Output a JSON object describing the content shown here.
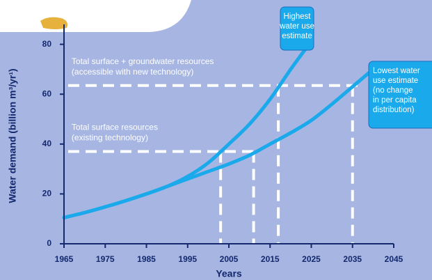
{
  "chart_data": {
    "type": "line",
    "ylabel": "Water demand (billion m³/yr¹)",
    "xlabel": "Years",
    "xlim": [
      1965,
      2045
    ],
    "xticks": [
      1965,
      1975,
      1985,
      1995,
      2005,
      2015,
      2025,
      2035,
      2045
    ],
    "ylim": [
      0,
      88
    ],
    "yticks": [
      0,
      20,
      40,
      60,
      80
    ],
    "series": [
      {
        "label": [
          "Highest",
          "water use",
          "estimate"
        ],
        "color": "#1aa9ea",
        "x": [
          1965,
          1970,
          1975,
          1980,
          1985,
          1990,
          1995,
          2000,
          2005,
          2010,
          2015,
          2020,
          2024
        ],
        "values": [
          10.5,
          12.5,
          14.8,
          17.3,
          20,
          23,
          27,
          32.5,
          40,
          48,
          58,
          70,
          79
        ]
      },
      {
        "label": [
          "Lowest water",
          "use estimate",
          "(no change",
          "in per capita",
          "distribution)"
        ],
        "color": "#1aa9ea",
        "x": [
          1965,
          1970,
          1975,
          1980,
          1985,
          1990,
          1995,
          2000,
          2005,
          2010,
          2015,
          2020,
          2025,
          2030,
          2035,
          2040
        ],
        "values": [
          10.5,
          12.5,
          14.8,
          17.3,
          20,
          23,
          26,
          29,
          32,
          35.5,
          40,
          44.5,
          49.5,
          56,
          63,
          70
        ]
      }
    ],
    "reference_lines": [
      {
        "label": [
          "Total surface + groundwater resources",
          "(accessible with new technology)"
        ],
        "y": 63.5,
        "x": [
          1966,
          2037
        ]
      },
      {
        "label": [
          "Total surface resources",
          "(existing technology)"
        ],
        "y": 37,
        "x": [
          1966,
          2011
        ]
      }
    ],
    "drops": [
      {
        "x": 2003,
        "y": 37
      },
      {
        "x": 2011,
        "y": 37
      },
      {
        "x": 2017,
        "y": 63.5
      },
      {
        "x": 2035,
        "y": 63.5
      }
    ]
  }
}
